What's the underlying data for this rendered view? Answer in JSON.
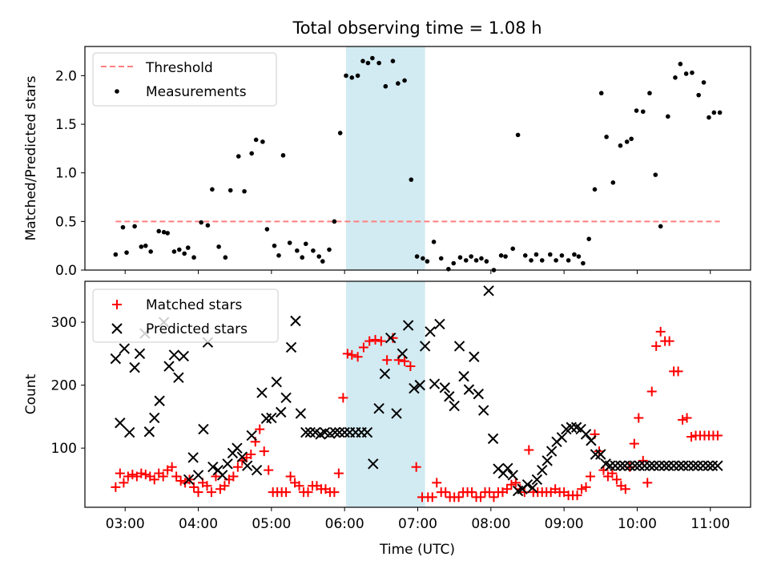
{
  "figure_title": "Total observing time = 1.08 h",
  "colors": {
    "threshold": "#ff7f7f",
    "measurements": "#000000",
    "matched": "#ff0000",
    "predicted": "#000000",
    "highlight": "#add8e6"
  },
  "chart_data": [
    {
      "type": "scatter",
      "title": "Total observing time = 1.08 h",
      "xlabel": "",
      "ylabel": "Matched/Predicted stars",
      "xlim": [
        2.45,
        11.55
      ],
      "ylim": [
        0,
        2.3
      ],
      "x_tick_labels": [
        "03:00",
        "04:00",
        "05:00",
        "06:00",
        "07:00",
        "08:00",
        "09:00",
        "10:00",
        "11:00"
      ],
      "x_ticks": [
        3,
        4,
        5,
        6,
        7,
        8,
        9,
        10,
        11
      ],
      "y_ticks": [
        0.0,
        0.5,
        1.0,
        1.5,
        2.0
      ],
      "y_tick_labels": [
        "0.0",
        "0.5",
        "1.0",
        "1.5",
        "2.0"
      ],
      "legend_position": "upper-left",
      "shaded_span": [
        6.02,
        7.1
      ],
      "threshold": {
        "name": "Threshold",
        "value": 0.5,
        "x_range": [
          2.87,
          11.13
        ]
      },
      "series": [
        {
          "name": "Measurements",
          "x": [
            2.87,
            2.97,
            3.02,
            3.13,
            3.22,
            3.28,
            3.35,
            3.46,
            3.53,
            3.58,
            3.67,
            3.74,
            3.81,
            3.86,
            3.94,
            4.04,
            4.13,
            4.19,
            4.28,
            4.37,
            4.44,
            4.55,
            4.63,
            4.73,
            4.79,
            4.88,
            4.94,
            5.04,
            5.1,
            5.16,
            5.25,
            5.35,
            5.42,
            5.47,
            5.57,
            5.65,
            5.7,
            5.79,
            5.86,
            5.94,
            6.02,
            6.1,
            6.18,
            6.25,
            6.32,
            6.38,
            6.47,
            6.56,
            6.66,
            6.73,
            6.82,
            6.91,
            6.99,
            7.07,
            7.13,
            7.22,
            7.32,
            7.42,
            7.49,
            7.58,
            7.66,
            7.73,
            7.8,
            7.87,
            7.94,
            8.04,
            8.14,
            8.2,
            8.3,
            8.37,
            8.47,
            8.55,
            8.62,
            8.7,
            8.81,
            8.89,
            8.97,
            9.06,
            9.14,
            9.2,
            9.26,
            9.34,
            9.42,
            9.51,
            9.58,
            9.67,
            9.77,
            9.86,
            9.92,
            9.99,
            10.08,
            10.17,
            10.25,
            10.32,
            10.42,
            10.52,
            10.59,
            10.67,
            10.75,
            10.84,
            10.91,
            10.98,
            11.05,
            11.13
          ],
          "y": [
            0.16,
            0.44,
            0.18,
            0.45,
            0.24,
            0.25,
            0.19,
            0.4,
            0.39,
            0.38,
            0.19,
            0.21,
            0.17,
            0.23,
            0.13,
            0.49,
            0.46,
            0.83,
            0.24,
            0.13,
            0.82,
            1.17,
            0.81,
            1.2,
            1.34,
            1.32,
            0.42,
            0.25,
            0.15,
            1.18,
            0.28,
            0.2,
            0.13,
            0.27,
            0.2,
            0.14,
            0.09,
            0.21,
            0.5,
            1.41,
            2.0,
            1.98,
            2.0,
            2.15,
            2.13,
            2.18,
            2.13,
            1.89,
            2.15,
            1.92,
            1.95,
            0.93,
            0.14,
            0.12,
            0.09,
            0.29,
            0.12,
            0.01,
            0.07,
            0.13,
            0.1,
            0.14,
            0.1,
            0.12,
            0.09,
            0.0,
            0.15,
            0.14,
            0.22,
            1.39,
            0.15,
            0.1,
            0.16,
            0.1,
            0.16,
            0.1,
            0.15,
            0.1,
            0.16,
            0.14,
            0.07,
            0.32,
            0.83,
            1.82,
            1.37,
            0.9,
            1.28,
            1.32,
            1.35,
            1.64,
            1.63,
            1.82,
            0.98,
            0.45,
            1.58,
            1.98,
            2.12,
            2.02,
            2.03,
            1.8,
            1.93,
            1.57,
            1.62,
            1.62
          ]
        }
      ]
    },
    {
      "type": "scatter",
      "title": "",
      "xlabel": "Time (UTC)",
      "ylabel": "Count",
      "xlim": [
        2.45,
        11.55
      ],
      "ylim": [
        6,
        365
      ],
      "x_ticks": [
        3,
        4,
        5,
        6,
        7,
        8,
        9,
        10,
        11
      ],
      "x_tick_labels": [
        "03:00",
        "04:00",
        "05:00",
        "06:00",
        "07:00",
        "08:00",
        "09:00",
        "10:00",
        "11:00"
      ],
      "y_ticks": [
        100,
        200,
        300
      ],
      "y_tick_labels": [
        "100",
        "200",
        "300"
      ],
      "legend_position": "upper-left",
      "shaded_span": [
        6.02,
        7.1
      ],
      "series": [
        {
          "name": "Matched stars",
          "x": [
            2.87,
            2.93,
            2.98,
            3.04,
            3.1,
            3.16,
            3.22,
            3.28,
            3.34,
            3.4,
            3.46,
            3.52,
            3.58,
            3.64,
            3.7,
            3.76,
            3.82,
            3.88,
            3.94,
            4.0,
            4.06,
            4.12,
            4.18,
            4.24,
            4.3,
            4.36,
            4.42,
            4.48,
            4.54,
            4.6,
            4.66,
            4.72,
            4.78,
            4.84,
            4.9,
            4.96,
            5.02,
            5.08,
            5.14,
            5.2,
            5.26,
            5.32,
            5.38,
            5.44,
            5.5,
            5.56,
            5.62,
            5.68,
            5.74,
            5.8,
            5.86,
            5.92,
            5.98,
            6.04,
            6.1,
            6.18,
            6.26,
            6.34,
            6.42,
            6.5,
            6.58,
            6.66,
            6.74,
            6.82,
            6.9,
            6.98,
            7.06,
            7.14,
            7.2,
            7.26,
            7.32,
            7.38,
            7.44,
            7.5,
            7.56,
            7.62,
            7.68,
            7.74,
            7.8,
            7.86,
            7.92,
            7.98,
            8.04,
            8.1,
            8.16,
            8.22,
            8.28,
            8.34,
            8.4,
            8.46,
            8.52,
            8.58,
            8.64,
            8.7,
            8.76,
            8.82,
            8.88,
            8.94,
            9.0,
            9.06,
            9.12,
            9.18,
            9.24,
            9.3,
            9.36,
            9.42,
            9.48,
            9.54,
            9.6,
            9.66,
            9.72,
            9.78,
            9.84,
            9.9,
            9.96,
            10.02,
            10.08,
            10.14,
            10.2,
            10.26,
            10.32,
            10.38,
            10.44,
            10.5,
            10.56,
            10.62,
            10.68,
            10.74,
            10.8,
            10.86,
            10.92,
            10.98,
            11.04,
            11.1
          ],
          "y": [
            38,
            60,
            45,
            55,
            58,
            55,
            60,
            58,
            55,
            50,
            60,
            55,
            65,
            70,
            55,
            48,
            45,
            50,
            38,
            30,
            45,
            40,
            30,
            55,
            35,
            40,
            50,
            55,
            70,
            80,
            85,
            90,
            110,
            130,
            95,
            65,
            30,
            30,
            30,
            30,
            55,
            45,
            40,
            30,
            30,
            40,
            40,
            35,
            35,
            30,
            30,
            60,
            180,
            250,
            248,
            245,
            260,
            270,
            272,
            270,
            240,
            275,
            240,
            238,
            230,
            70,
            22,
            22,
            22,
            45,
            30,
            30,
            22,
            22,
            22,
            30,
            30,
            30,
            22,
            22,
            30,
            30,
            22,
            30,
            30,
            35,
            42,
            45,
            35,
            30,
            97,
            30,
            30,
            30,
            30,
            30,
            35,
            30,
            30,
            25,
            25,
            25,
            35,
            38,
            55,
            122,
            95,
            65,
            55,
            60,
            50,
            40,
            35,
            70,
            107,
            148,
            80,
            45,
            190,
            262,
            285,
            270,
            270,
            222,
            222,
            145,
            148,
            118,
            120,
            120,
            120,
            120,
            120,
            120
          ],
          "note_count_hint": ""
        },
        {
          "name": "Predicted stars",
          "x": [
            2.87,
            2.93,
            2.99,
            3.06,
            3.13,
            3.2,
            3.27,
            3.33,
            3.4,
            3.47,
            3.53,
            3.6,
            3.67,
            3.73,
            3.8,
            3.87,
            3.93,
            4.0,
            4.07,
            4.13,
            4.2,
            4.27,
            4.33,
            4.4,
            4.47,
            4.53,
            4.6,
            4.67,
            4.73,
            4.8,
            4.87,
            4.93,
            5.0,
            5.07,
            5.13,
            5.2,
            5.27,
            5.33,
            5.4,
            5.47,
            5.53,
            5.6,
            5.67,
            5.73,
            5.8,
            5.87,
            5.93,
            6.0,
            6.07,
            6.15,
            6.23,
            6.31,
            6.39,
            6.47,
            6.55,
            6.63,
            6.71,
            6.79,
            6.87,
            6.95,
            7.03,
            7.1,
            7.17,
            7.23,
            7.3,
            7.37,
            7.43,
            7.5,
            7.57,
            7.63,
            7.7,
            7.77,
            7.83,
            7.9,
            7.97,
            8.03,
            8.1,
            8.17,
            8.23,
            8.3,
            8.37,
            8.43,
            8.5,
            8.57,
            8.63,
            8.7,
            8.77,
            8.83,
            8.9,
            8.97,
            9.03,
            9.1,
            9.17,
            9.23,
            9.3,
            9.37,
            9.43,
            9.5,
            9.57,
            9.63,
            9.7,
            9.77,
            9.83,
            9.9,
            9.97,
            10.03,
            10.1,
            10.17,
            10.23,
            10.3,
            10.37,
            10.43,
            10.5,
            10.57,
            10.63,
            10.7,
            10.77,
            10.83,
            10.9,
            10.97,
            11.03,
            11.1
          ],
          "y": [
            242,
            140,
            258,
            125,
            228,
            250,
            282,
            126,
            148,
            175,
            300,
            230,
            248,
            212,
            246,
            50,
            85,
            57,
            130,
            268,
            70,
            65,
            57,
            75,
            92,
            100,
            86,
            72,
            120,
            65,
            188,
            147,
            148,
            205,
            157,
            180,
            260,
            302,
            155,
            125,
            125,
            125,
            122,
            125,
            123,
            125,
            125,
            125,
            125,
            125,
            125,
            125,
            75,
            163,
            218,
            275,
            155,
            250,
            295,
            195,
            200,
            262,
            285,
            202,
            297,
            196,
            182,
            167,
            262,
            214,
            193,
            245,
            186,
            160,
            350,
            115,
            67,
            60,
            68,
            57,
            32,
            35,
            42,
            37,
            50,
            65,
            80,
            95,
            110,
            117,
            130,
            133,
            133,
            130,
            122,
            112,
            90,
            90,
            75,
            72,
            72,
            72,
            72,
            72,
            72,
            72,
            72,
            72,
            72,
            72,
            72,
            72,
            72,
            72,
            72,
            72,
            72,
            72,
            72,
            72,
            72,
            72
          ]
        }
      ]
    }
  ]
}
